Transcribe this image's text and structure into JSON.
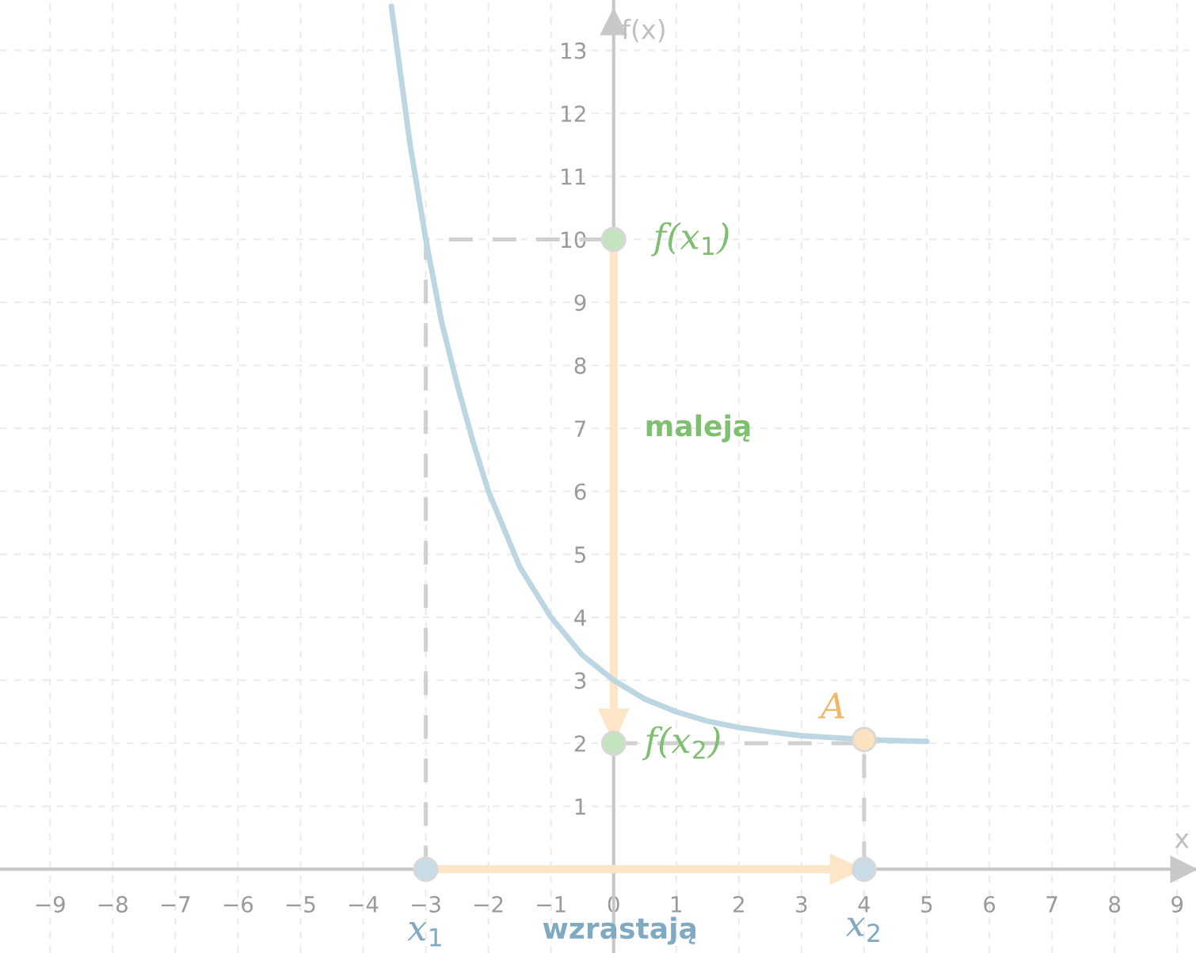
{
  "chart_data": {
    "type": "line",
    "xlabel": "x",
    "ylabel": "f(x)",
    "xlim": [
      -9.8,
      9.3
    ],
    "ylim": [
      -1.33,
      13.8
    ],
    "xticks": [
      {
        "value": -9,
        "label": "−9"
      },
      {
        "value": -8,
        "label": "−8"
      },
      {
        "value": -7,
        "label": "−7"
      },
      {
        "value": -6,
        "label": "−6"
      },
      {
        "value": -5,
        "label": "−5"
      },
      {
        "value": -4,
        "label": "−4"
      },
      {
        "value": -3,
        "label": "−3"
      },
      {
        "value": -2,
        "label": "−2"
      },
      {
        "value": -1,
        "label": "−1"
      },
      0,
      1,
      2,
      3,
      4,
      5,
      6,
      7,
      8,
      9
    ],
    "yticks": [
      1,
      2,
      3,
      4,
      5,
      6,
      7,
      8,
      9,
      10,
      11,
      12,
      13
    ],
    "grid": true,
    "series": [
      {
        "color": "#bcd6e2",
        "x": [
          -3.55,
          -3.25,
          -3,
          -2.75,
          -2.5,
          -2.25,
          -2,
          -1.75,
          -1.5,
          -1.25,
          -1,
          -0.75,
          -0.5,
          -0.25,
          0,
          0.5,
          1,
          1.5,
          2,
          2.5,
          3,
          3.5,
          4,
          4.5,
          5
        ],
        "values": [
          13.7,
          11.5,
          10,
          8.7,
          7.7,
          6.8,
          6,
          5.4,
          4.8,
          4.4,
          4,
          3.7,
          3.4,
          3.2,
          3,
          2.7,
          2.5,
          2.35,
          2.25,
          2.18,
          2.12,
          2.09,
          2.06,
          2.04,
          2.03
        ]
      },
      {
        "type": "line",
        "line_style": "dashed",
        "color": "#d0d0d0",
        "x": [
          -3,
          -3,
          0
        ],
        "values": [
          0,
          10,
          10
        ]
      },
      {
        "type": "line",
        "line_style": "dashed",
        "color": "#d0d0d0",
        "x": [
          0,
          4,
          4
        ],
        "values": [
          2,
          2,
          0
        ]
      },
      {
        "type": "scatter",
        "marker": "circle",
        "color": "#c9dbe6",
        "x": [
          -3,
          4
        ],
        "values": [
          0,
          0
        ]
      },
      {
        "type": "scatter",
        "marker": "circle",
        "color": "#c6e3c0",
        "x": [
          0,
          0
        ],
        "values": [
          10,
          2
        ]
      },
      {
        "type": "scatter",
        "marker": "circle",
        "color": "#fde2bf",
        "x": [
          4
        ],
        "values": [
          2.06
        ]
      }
    ],
    "annotations": [
      "f(x$_{1}$)",
      "f(x$_{2}$)",
      "A",
      "x$_{1}$",
      "x$_{2}$",
      "maleją",
      "wzrastają"
    ]
  }
}
